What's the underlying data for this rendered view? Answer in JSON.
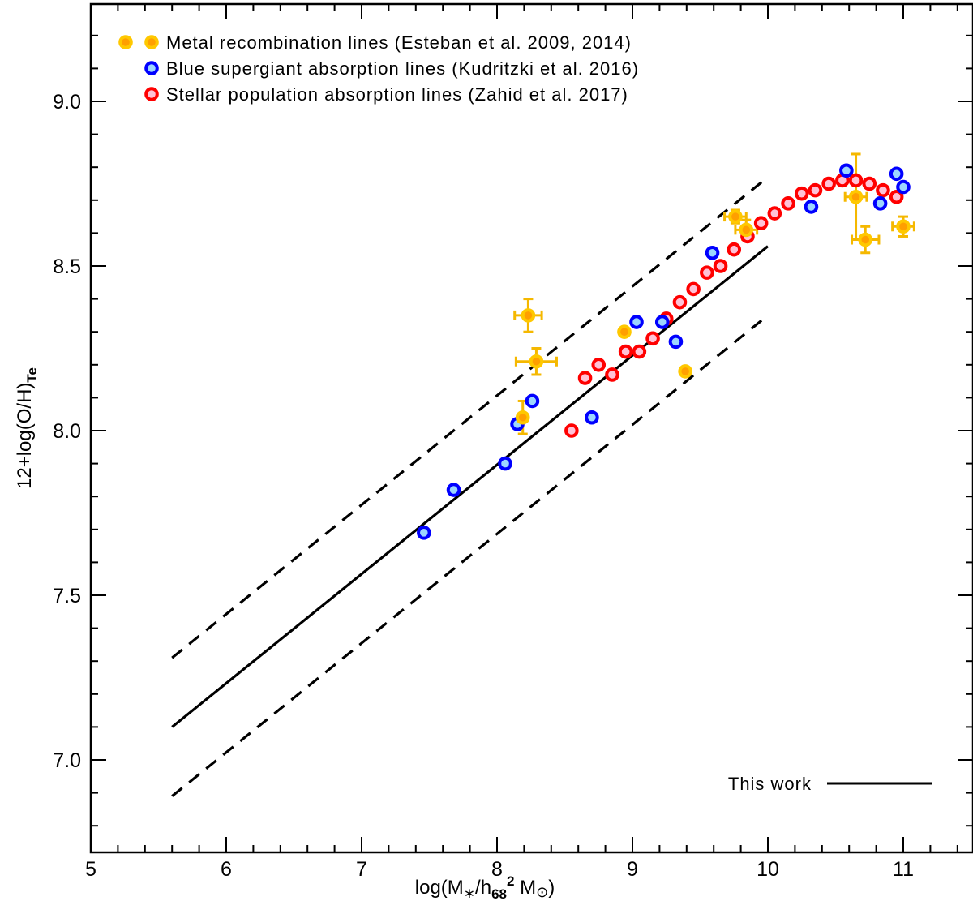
{
  "chart_data": {
    "type": "scatter",
    "xlabel": "log(M∗/h68² M⊙)",
    "ylabel": "12+log(O/H)Te",
    "xlim": [
      5,
      11.5
    ],
    "ylim": [
      6.8,
      9.3
    ],
    "x_ticks": [
      "5",
      "6",
      "7",
      "8",
      "9",
      "10",
      "11"
    ],
    "y_ticks": [
      "7.0",
      "7.5",
      "8.0",
      "8.5",
      "9.0"
    ],
    "grid": false,
    "legend_position": "top-left",
    "series": [
      {
        "name": "Metal recombination lines (Esteban et al. 2009, 2014)",
        "marker": "circle",
        "edge_color": "#ffc800",
        "face_color": "#ff9f00",
        "errorbar_color": "#f5b800",
        "points": [
          {
            "x": 8.19,
            "y": 8.04,
            "xerr": 0.0,
            "yerr": 0.05
          },
          {
            "x": 8.23,
            "y": 8.35,
            "xerr": 0.1,
            "yerr": 0.05
          },
          {
            "x": 8.29,
            "y": 8.21,
            "xerr": 0.15,
            "yerr": 0.04
          },
          {
            "x": 8.94,
            "y": 8.3,
            "xerr": 0.0,
            "yerr": 0.0
          },
          {
            "x": 9.39,
            "y": 8.18,
            "xerr": 0.0,
            "yerr": 0.0
          },
          {
            "x": 9.76,
            "y": 8.65,
            "xerr": 0.08,
            "yerr": 0.02
          },
          {
            "x": 9.84,
            "y": 8.61,
            "xerr": 0.08,
            "yerr": 0.03
          },
          {
            "x": 10.65,
            "y": 8.71,
            "xerr": 0.08,
            "yerr": 0.13
          },
          {
            "x": 10.72,
            "y": 8.58,
            "xerr": 0.1,
            "yerr": 0.04
          },
          {
            "x": 11.0,
            "y": 8.62,
            "xerr": 0.08,
            "yerr": 0.03
          }
        ]
      },
      {
        "name": "Blue supergiant absorption lines (Kudritzki et al. 2016)",
        "marker": "circle",
        "edge_color": "#0000ff",
        "face_color": "#9dd6ff",
        "points": [
          {
            "x": 7.46,
            "y": 7.69
          },
          {
            "x": 7.68,
            "y": 7.82
          },
          {
            "x": 8.06,
            "y": 7.9
          },
          {
            "x": 8.15,
            "y": 8.02
          },
          {
            "x": 8.26,
            "y": 8.09
          },
          {
            "x": 8.7,
            "y": 8.04
          },
          {
            "x": 9.03,
            "y": 8.33
          },
          {
            "x": 9.22,
            "y": 8.33
          },
          {
            "x": 9.32,
            "y": 8.27
          },
          {
            "x": 9.59,
            "y": 8.54
          },
          {
            "x": 10.32,
            "y": 8.68
          },
          {
            "x": 10.58,
            "y": 8.79
          },
          {
            "x": 10.83,
            "y": 8.69
          },
          {
            "x": 10.95,
            "y": 8.78
          },
          {
            "x": 11.0,
            "y": 8.74
          }
        ]
      },
      {
        "name": "Stellar population absorption lines (Zahid et al. 2017)",
        "marker": "circle",
        "edge_color": "#ff0000",
        "face_color": "#ffc2d6",
        "points": [
          {
            "x": 8.55,
            "y": 8.0
          },
          {
            "x": 8.65,
            "y": 8.16
          },
          {
            "x": 8.75,
            "y": 8.2
          },
          {
            "x": 8.85,
            "y": 8.17
          },
          {
            "x": 8.95,
            "y": 8.24
          },
          {
            "x": 9.05,
            "y": 8.24
          },
          {
            "x": 9.15,
            "y": 8.28
          },
          {
            "x": 9.25,
            "y": 8.34
          },
          {
            "x": 9.35,
            "y": 8.39
          },
          {
            "x": 9.45,
            "y": 8.43
          },
          {
            "x": 9.55,
            "y": 8.48
          },
          {
            "x": 9.65,
            "y": 8.5
          },
          {
            "x": 9.75,
            "y": 8.55
          },
          {
            "x": 9.85,
            "y": 8.59
          },
          {
            "x": 9.95,
            "y": 8.63
          },
          {
            "x": 10.05,
            "y": 8.66
          },
          {
            "x": 10.15,
            "y": 8.69
          },
          {
            "x": 10.25,
            "y": 8.72
          },
          {
            "x": 10.35,
            "y": 8.73
          },
          {
            "x": 10.45,
            "y": 8.75
          },
          {
            "x": 10.55,
            "y": 8.76
          },
          {
            "x": 10.65,
            "y": 8.76
          },
          {
            "x": 10.75,
            "y": 8.75
          },
          {
            "x": 10.85,
            "y": 8.73
          },
          {
            "x": 10.95,
            "y": 8.71
          }
        ]
      }
    ],
    "lines": [
      {
        "name": "This work",
        "style": "solid",
        "x": [
          5.6,
          10.0
        ],
        "y": [
          7.1,
          8.56
        ]
      },
      {
        "style": "dashed",
        "x": [
          5.6,
          10.0
        ],
        "y": [
          7.31,
          8.77
        ]
      },
      {
        "style": "dashed",
        "x": [
          5.6,
          10.0
        ],
        "y": [
          6.89,
          8.35
        ]
      }
    ]
  },
  "legend": {
    "items": [
      "Metal recombination lines (Esteban et al. 2009, 2014)",
      "Blue supergiant absorption lines (Kudritzki et al. 2016)",
      "Stellar population absorption lines (Zahid et al. 2017)"
    ],
    "line_label": "This work"
  }
}
